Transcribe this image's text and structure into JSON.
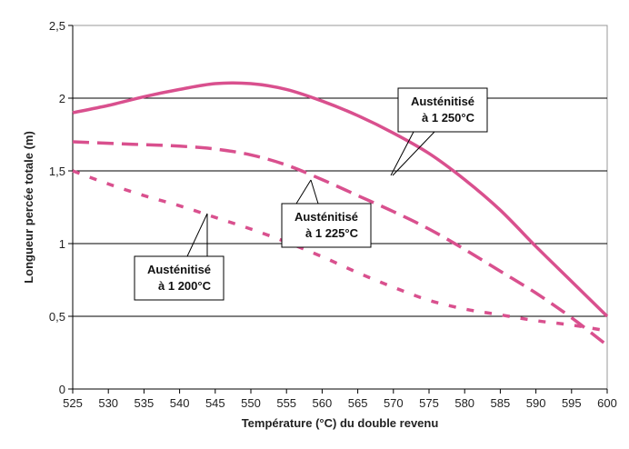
{
  "chart_data": {
    "type": "line",
    "title": "",
    "xlabel": "Température (°C) du double revenu",
    "ylabel": "Longueur percée totale (m)",
    "xlim": [
      525,
      600
    ],
    "ylim": [
      0,
      2.5
    ],
    "x_ticks": [
      "525",
      "530",
      "535",
      "540",
      "545",
      "550",
      "555",
      "560",
      "565",
      "570",
      "575",
      "580",
      "585",
      "590",
      "595",
      "600"
    ],
    "y_ticks": [
      "0",
      "0,5",
      "1",
      "1,5",
      "2",
      "2,5"
    ],
    "grid": "horizontal major lines",
    "x": [
      525,
      530,
      535,
      540,
      545,
      550,
      555,
      560,
      565,
      570,
      575,
      580,
      585,
      590,
      595,
      600
    ],
    "series": [
      {
        "name": "Austénitisé à 1 250°C",
        "label_lines": [
          "Austénitisé",
          "à 1 250°C"
        ],
        "style": "solid",
        "values": [
          1.9,
          1.95,
          2.01,
          2.06,
          2.1,
          2.1,
          2.06,
          1.98,
          1.88,
          1.76,
          1.62,
          1.44,
          1.23,
          0.98,
          0.74,
          0.5
        ]
      },
      {
        "name": "Austénitisé à 1 225°C",
        "label_lines": [
          "Austénitisé",
          "à 1 225°C"
        ],
        "style": "long-dash",
        "values": [
          1.7,
          1.69,
          1.68,
          1.67,
          1.65,
          1.61,
          1.54,
          1.44,
          1.33,
          1.22,
          1.1,
          0.96,
          0.81,
          0.66,
          0.49,
          0.3
        ]
      },
      {
        "name": "Austénitisé à 1 200°C",
        "label_lines": [
          "Austénitisé",
          "à 1 200°C"
        ],
        "style": "short-dash",
        "values": [
          1.5,
          1.41,
          1.33,
          1.26,
          1.18,
          1.1,
          1.01,
          0.91,
          0.8,
          0.7,
          0.61,
          0.55,
          0.51,
          0.47,
          0.44,
          0.4
        ]
      }
    ],
    "line_color": "#d9508e"
  }
}
